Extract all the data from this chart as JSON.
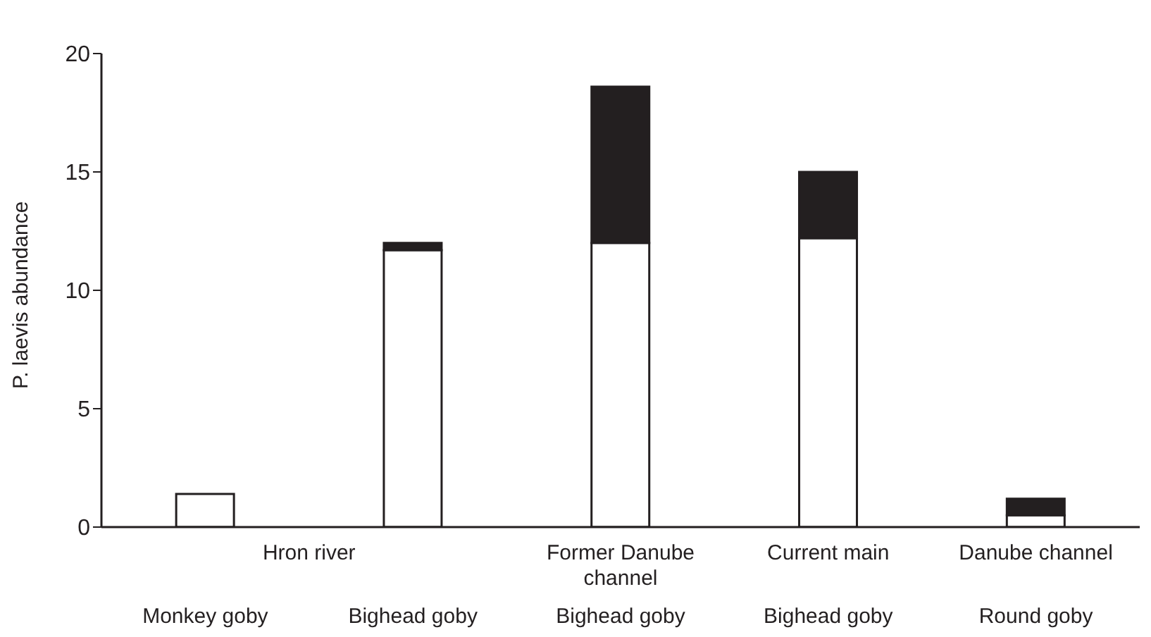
{
  "chart_data": {
    "type": "bar",
    "stacked": true,
    "ylabel": "P. laevis abundance",
    "categories": [
      "Monkey goby",
      "Bighead goby",
      "Bighead goby",
      "Bighead goby",
      "Round goby"
    ],
    "series": [
      {
        "color": "#ffffff",
        "values": [
          1.4,
          11.7,
          12.0,
          12.2,
          0.5
        ]
      },
      {
        "color": "#231f20",
        "values": [
          0,
          0.3,
          6.6,
          2.8,
          0.7
        ]
      }
    ],
    "ylim": [
      0,
      20
    ],
    "yticks": [
      0,
      5,
      10,
      15,
      20
    ],
    "grid": false,
    "legend": false,
    "annotations": [
      "Hron river",
      "Former Danube channel",
      "Current main",
      "Danube channel"
    ]
  }
}
